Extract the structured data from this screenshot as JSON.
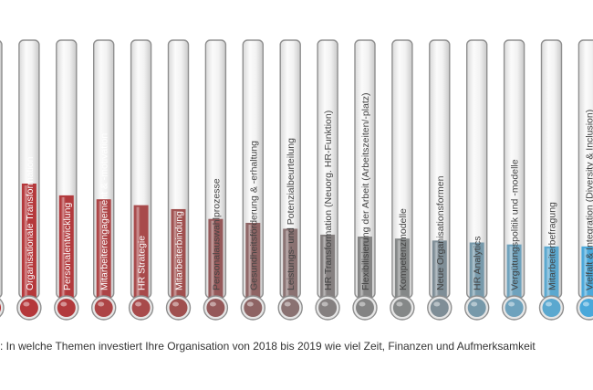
{
  "chart_data": {
    "type": "bar",
    "orientation": "vertical-thermometer",
    "title": "",
    "xlabel": "",
    "ylabel": "",
    "ylim": [
      0,
      100
    ],
    "grid": false,
    "legend": "none",
    "categories": [
      "",
      "Organisationale Transformation",
      "Personalentwicklung",
      "Mitarbeiterengagement & -motivation",
      "HR Strategie",
      "Mitarbeiterbindung",
      "Personalauswahlprozesse",
      "Gesundheitsförderung & -erhaltung",
      "Leistungs- und Potenzialbeurteilung",
      "HR Transformation (Neuorg. HR-Funktion)",
      "Flexibilisierung der Arbeit (Arbeitszeiten/-platz)",
      "Kompetenzmodelle",
      "Neue Organisationsformen",
      "HR Analytics",
      "Vergütungspolitik und -modelle",
      "Mitarbeiterbefragung",
      "Vielfalt & Integration (Diversity & Inclusion)"
    ],
    "values": [
      61,
      60,
      54,
      52,
      49,
      47,
      42,
      40,
      37,
      34,
      33,
      32,
      31,
      30,
      29,
      28,
      28
    ],
    "colors": [
      "#b02a2e",
      "#b5383b",
      "#b23a3d",
      "#ad4446",
      "#a84a4b",
      "#a0504f",
      "#95595a",
      "#8e6464",
      "#8a7272",
      "#858080",
      "#848484",
      "#858888",
      "#7f8e97",
      "#7799aa",
      "#6ea2bd",
      "#5ba8cf",
      "#4aa8da"
    ]
  },
  "caption": ": In welche Themen investiert Ihre Organisation von 2018 bis 2019 wie viel Zeit, Finanzen und Aufmerksamkeit"
}
